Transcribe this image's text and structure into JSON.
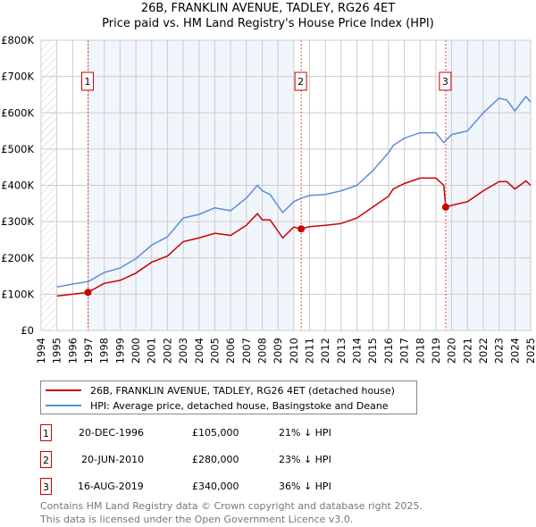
{
  "chart_data": {
    "type": "line",
    "title": "26B, FRANKLIN AVENUE, TADLEY, RG26 4ET",
    "subtitle": "Price paid vs. HM Land Registry's House Price Index (HPI)",
    "xlim": [
      1994,
      2025
    ],
    "ylim": [
      0,
      800000
    ],
    "x_ticks": [
      "1994",
      "1995",
      "1996",
      "1997",
      "1998",
      "1999",
      "2000",
      "2001",
      "2002",
      "2003",
      "2004",
      "2005",
      "2006",
      "2007",
      "2008",
      "2009",
      "2010",
      "2011",
      "2012",
      "2013",
      "2014",
      "2015",
      "2016",
      "2017",
      "2018",
      "2019",
      "2020",
      "2021",
      "2022",
      "2023",
      "2024",
      "2025"
    ],
    "y_ticks": [
      {
        "v": 0,
        "label": "£0"
      },
      {
        "v": 100000,
        "label": "£100K"
      },
      {
        "v": 200000,
        "label": "£200K"
      },
      {
        "v": 300000,
        "label": "£300K"
      },
      {
        "v": 400000,
        "label": "£400K"
      },
      {
        "v": 500000,
        "label": "£500K"
      },
      {
        "v": 600000,
        "label": "£600K"
      },
      {
        "v": 700000,
        "label": "£700K"
      },
      {
        "v": 800000,
        "label": "£800K"
      }
    ],
    "series": [
      {
        "name": "26B, FRANKLIN AVENUE, TADLEY, RG26 4ET (detached house)",
        "color": "#cc0000",
        "x": [
          1995,
          1996,
          1996.97,
          1998,
          1999,
          2000,
          2001,
          2002,
          2003,
          2004,
          2005,
          2006,
          2007,
          2007.7,
          2008,
          2008.5,
          2009.3,
          2010,
          2010.47,
          2011,
          2012,
          2013,
          2014,
          2015,
          2016,
          2016.3,
          2017,
          2018,
          2019,
          2019.5,
          2019.62,
          2020,
          2021,
          2022,
          2023,
          2023.5,
          2024,
          2024.7,
          2025
        ],
        "y": [
          95000,
          100000,
          105000,
          130000,
          138000,
          158000,
          188000,
          205000,
          245000,
          255000,
          268000,
          262000,
          290000,
          322000,
          305000,
          305000,
          255000,
          285000,
          280000,
          286000,
          290000,
          295000,
          310000,
          340000,
          370000,
          390000,
          405000,
          420000,
          420000,
          400000,
          340000,
          345000,
          355000,
          385000,
          410000,
          410000,
          390000,
          412000,
          400000
        ]
      },
      {
        "name": "HPI: Average price, detached house, Basingstoke and Deane",
        "color": "#5b8fd4",
        "x": [
          1995,
          1996,
          1997,
          1998,
          1999,
          2000,
          2001,
          2002,
          2003,
          2004,
          2005,
          2006,
          2007,
          2007.7,
          2008,
          2008.5,
          2009.3,
          2010,
          2010.5,
          2011,
          2012,
          2013,
          2014,
          2015,
          2016,
          2016.3,
          2017,
          2018,
          2019,
          2019.5,
          2020,
          2021,
          2022,
          2023,
          2023.5,
          2024,
          2024.7,
          2025
        ],
        "y": [
          120000,
          128000,
          135000,
          160000,
          172000,
          198000,
          235000,
          258000,
          310000,
          320000,
          338000,
          330000,
          365000,
          400000,
          385000,
          375000,
          325000,
          355000,
          365000,
          372000,
          375000,
          385000,
          400000,
          440000,
          490000,
          510000,
          530000,
          545000,
          545000,
          518000,
          540000,
          550000,
          600000,
          640000,
          635000,
          605000,
          645000,
          630000
        ]
      }
    ],
    "sales": [
      {
        "n": "1",
        "x": 1996.97,
        "y": 105000,
        "date": "20-DEC-1996",
        "price": "£105,000",
        "hpi": "21% ↓ HPI"
      },
      {
        "n": "2",
        "x": 2010.47,
        "y": 280000,
        "date": "20-JUN-2010",
        "price": "£280,000",
        "hpi": "23% ↓ HPI"
      },
      {
        "n": "3",
        "x": 2019.62,
        "y": 340000,
        "date": "16-AUG-2019",
        "price": "£340,000",
        "hpi": "36% ↓ HPI"
      }
    ]
  },
  "footer": {
    "line1": "Contains HM Land Registry data © Crown copyright and database right 2025.",
    "line2": "This data is licensed under the Open Government Licence v3.0."
  }
}
